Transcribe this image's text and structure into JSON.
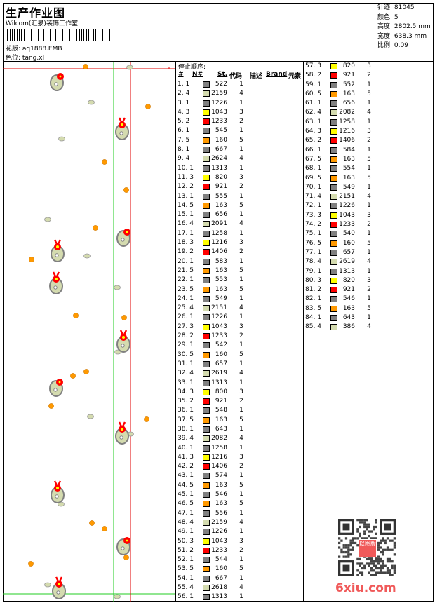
{
  "header": {
    "title": "生产作业图",
    "company": "Wilcom(汇泉)装饰工作室",
    "design_label": "花版:",
    "design_value": "aq1888.EMB",
    "colorway_label": "色位:",
    "colorway_value": "tang.xl"
  },
  "stats": {
    "stitches_label": "针迹:",
    "stitches_value": "81045",
    "colors_label": "颜色:",
    "colors_value": "5",
    "height_label": "高度:",
    "height_value": "2802.5 mm",
    "width_label": "宽度:",
    "width_value": "638.3 mm",
    "scale_label": "比例:",
    "scale_value": "0.09"
  },
  "table": {
    "title": "停止顺序:",
    "columns": [
      "#",
      "N#",
      "St.",
      "代码",
      "描述",
      "Brand",
      "元素"
    ]
  },
  "palette": {
    "1": "#808080",
    "2": "#ff0000",
    "3": "#ffff00",
    "4": "#d4dbaf",
    "5": "#ff9900"
  },
  "stops": [
    {
      "n": "1.",
      "c": "1",
      "st": "522",
      "code": "1"
    },
    {
      "n": "2.",
      "c": "4",
      "st": "2159",
      "code": "4"
    },
    {
      "n": "3.",
      "c": "1",
      "st": "1226",
      "code": "1"
    },
    {
      "n": "4.",
      "c": "3",
      "st": "1043",
      "code": "3"
    },
    {
      "n": "5.",
      "c": "2",
      "st": "1233",
      "code": "2"
    },
    {
      "n": "6.",
      "c": "1",
      "st": "545",
      "code": "1"
    },
    {
      "n": "7.",
      "c": "5",
      "st": "160",
      "code": "5"
    },
    {
      "n": "8.",
      "c": "1",
      "st": "667",
      "code": "1"
    },
    {
      "n": "9.",
      "c": "4",
      "st": "2624",
      "code": "4"
    },
    {
      "n": "10.",
      "c": "1",
      "st": "1313",
      "code": "1"
    },
    {
      "n": "11.",
      "c": "3",
      "st": "820",
      "code": "3"
    },
    {
      "n": "12.",
      "c": "2",
      "st": "921",
      "code": "2"
    },
    {
      "n": "13.",
      "c": "1",
      "st": "555",
      "code": "1"
    },
    {
      "n": "14.",
      "c": "5",
      "st": "163",
      "code": "5"
    },
    {
      "n": "15.",
      "c": "1",
      "st": "656",
      "code": "1"
    },
    {
      "n": "16.",
      "c": "4",
      "st": "2091",
      "code": "4"
    },
    {
      "n": "17.",
      "c": "1",
      "st": "1258",
      "code": "1"
    },
    {
      "n": "18.",
      "c": "3",
      "st": "1216",
      "code": "3"
    },
    {
      "n": "19.",
      "c": "2",
      "st": "1406",
      "code": "2"
    },
    {
      "n": "20.",
      "c": "1",
      "st": "583",
      "code": "1"
    },
    {
      "n": "21.",
      "c": "5",
      "st": "163",
      "code": "5"
    },
    {
      "n": "22.",
      "c": "1",
      "st": "553",
      "code": "1"
    },
    {
      "n": "23.",
      "c": "5",
      "st": "163",
      "code": "5"
    },
    {
      "n": "24.",
      "c": "1",
      "st": "549",
      "code": "1"
    },
    {
      "n": "25.",
      "c": "4",
      "st": "2151",
      "code": "4"
    },
    {
      "n": "26.",
      "c": "1",
      "st": "1226",
      "code": "1"
    },
    {
      "n": "27.",
      "c": "3",
      "st": "1043",
      "code": "3"
    },
    {
      "n": "28.",
      "c": "2",
      "st": "1233",
      "code": "2"
    },
    {
      "n": "29.",
      "c": "1",
      "st": "542",
      "code": "1"
    },
    {
      "n": "30.",
      "c": "5",
      "st": "160",
      "code": "5"
    },
    {
      "n": "31.",
      "c": "1",
      "st": "657",
      "code": "1"
    },
    {
      "n": "32.",
      "c": "4",
      "st": "2619",
      "code": "4"
    },
    {
      "n": "33.",
      "c": "1",
      "st": "1313",
      "code": "1"
    },
    {
      "n": "34.",
      "c": "3",
      "st": "800",
      "code": "3"
    },
    {
      "n": "35.",
      "c": "2",
      "st": "921",
      "code": "2"
    },
    {
      "n": "36.",
      "c": "1",
      "st": "548",
      "code": "1"
    },
    {
      "n": "37.",
      "c": "5",
      "st": "163",
      "code": "5"
    },
    {
      "n": "38.",
      "c": "1",
      "st": "643",
      "code": "1"
    },
    {
      "n": "39.",
      "c": "4",
      "st": "2082",
      "code": "4"
    },
    {
      "n": "40.",
      "c": "1",
      "st": "1258",
      "code": "1"
    },
    {
      "n": "41.",
      "c": "3",
      "st": "1216",
      "code": "3"
    },
    {
      "n": "42.",
      "c": "2",
      "st": "1406",
      "code": "2"
    },
    {
      "n": "43.",
      "c": "1",
      "st": "574",
      "code": "1"
    },
    {
      "n": "44.",
      "c": "5",
      "st": "163",
      "code": "5"
    },
    {
      "n": "45.",
      "c": "1",
      "st": "546",
      "code": "1"
    },
    {
      "n": "46.",
      "c": "5",
      "st": "163",
      "code": "5"
    },
    {
      "n": "47.",
      "c": "1",
      "st": "556",
      "code": "1"
    },
    {
      "n": "48.",
      "c": "4",
      "st": "2159",
      "code": "4"
    },
    {
      "n": "49.",
      "c": "1",
      "st": "1226",
      "code": "1"
    },
    {
      "n": "50.",
      "c": "3",
      "st": "1043",
      "code": "3"
    },
    {
      "n": "51.",
      "c": "2",
      "st": "1233",
      "code": "2"
    },
    {
      "n": "52.",
      "c": "1",
      "st": "544",
      "code": "1"
    },
    {
      "n": "53.",
      "c": "5",
      "st": "160",
      "code": "5"
    },
    {
      "n": "54.",
      "c": "1",
      "st": "667",
      "code": "1"
    },
    {
      "n": "55.",
      "c": "4",
      "st": "2618",
      "code": "4"
    },
    {
      "n": "56.",
      "c": "1",
      "st": "1313",
      "code": "1"
    },
    {
      "n": "57.",
      "c": "3",
      "st": "820",
      "code": "3"
    },
    {
      "n": "58.",
      "c": "2",
      "st": "921",
      "code": "2"
    },
    {
      "n": "59.",
      "c": "1",
      "st": "552",
      "code": "1"
    },
    {
      "n": "60.",
      "c": "5",
      "st": "163",
      "code": "5"
    },
    {
      "n": "61.",
      "c": "1",
      "st": "656",
      "code": "1"
    },
    {
      "n": "62.",
      "c": "4",
      "st": "2082",
      "code": "4"
    },
    {
      "n": "63.",
      "c": "1",
      "st": "1258",
      "code": "1"
    },
    {
      "n": "64.",
      "c": "3",
      "st": "1216",
      "code": "3"
    },
    {
      "n": "65.",
      "c": "2",
      "st": "1406",
      "code": "2"
    },
    {
      "n": "66.",
      "c": "1",
      "st": "584",
      "code": "1"
    },
    {
      "n": "67.",
      "c": "5",
      "st": "163",
      "code": "5"
    },
    {
      "n": "68.",
      "c": "1",
      "st": "554",
      "code": "1"
    },
    {
      "n": "69.",
      "c": "5",
      "st": "163",
      "code": "5"
    },
    {
      "n": "70.",
      "c": "1",
      "st": "549",
      "code": "1"
    },
    {
      "n": "71.",
      "c": "4",
      "st": "2151",
      "code": "4"
    },
    {
      "n": "72.",
      "c": "1",
      "st": "1226",
      "code": "1"
    },
    {
      "n": "73.",
      "c": "3",
      "st": "1043",
      "code": "3"
    },
    {
      "n": "74.",
      "c": "2",
      "st": "1233",
      "code": "2"
    },
    {
      "n": "75.",
      "c": "1",
      "st": "540",
      "code": "1"
    },
    {
      "n": "76.",
      "c": "5",
      "st": "160",
      "code": "5"
    },
    {
      "n": "77.",
      "c": "1",
      "st": "657",
      "code": "1"
    },
    {
      "n": "78.",
      "c": "4",
      "st": "2619",
      "code": "4"
    },
    {
      "n": "79.",
      "c": "1",
      "st": "1313",
      "code": "1"
    },
    {
      "n": "80.",
      "c": "3",
      "st": "820",
      "code": "3"
    },
    {
      "n": "81.",
      "c": "2",
      "st": "921",
      "code": "2"
    },
    {
      "n": "82.",
      "c": "1",
      "st": "546",
      "code": "1"
    },
    {
      "n": "83.",
      "c": "5",
      "st": "163",
      "code": "5"
    },
    {
      "n": "84.",
      "c": "1",
      "st": "643",
      "code": "1"
    },
    {
      "n": "85.",
      "c": "4",
      "st": "386",
      "code": "4"
    }
  ],
  "watermark": "6xiu.com",
  "qr_stamp": "以图版"
}
